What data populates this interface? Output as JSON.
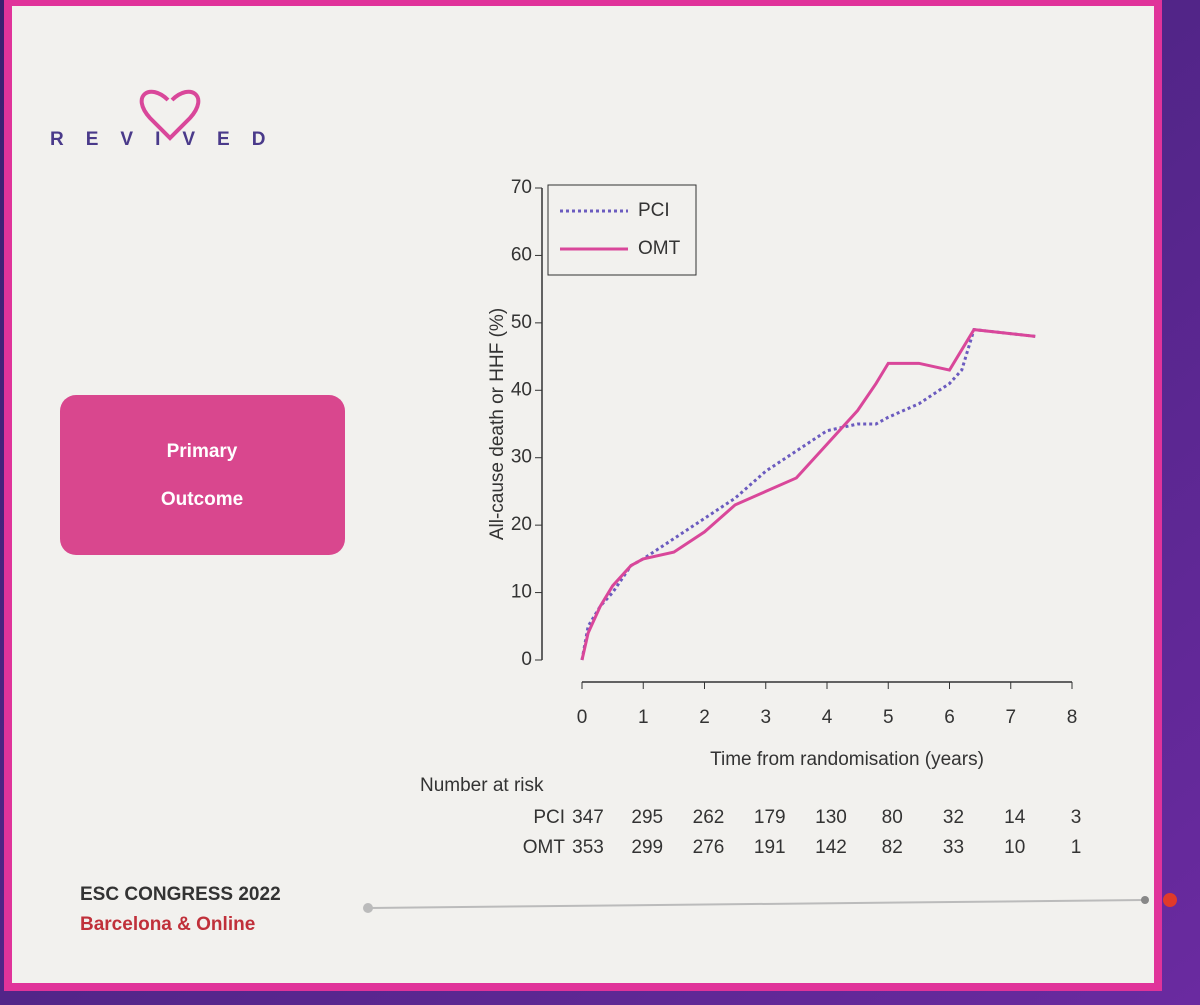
{
  "slide": {
    "logo": "REVIVED",
    "badge": [
      "Primary",
      "Outcome"
    ],
    "footer": {
      "title": "ESC CONGRESS 2022",
      "subtitle": "Barcelona & Online"
    }
  },
  "chart_data": {
    "type": "line",
    "y_label": "All-cause death or HHF (%)",
    "x_label": "Time from randomisation (years)",
    "x": [
      0,
      0.1,
      0.3,
      0.5,
      0.8,
      1,
      1.5,
      2,
      2.5,
      3,
      3.5,
      4,
      4.5,
      4.8,
      5,
      5.5,
      6,
      6.2,
      6.4,
      7.4
    ],
    "series": [
      {
        "name": "PCI",
        "color": "#6b5bbf",
        "style": "dotted",
        "values": [
          0,
          5,
          8,
          10,
          14,
          15,
          18,
          21,
          24,
          28,
          31,
          34,
          35,
          35,
          36,
          38,
          41,
          43,
          49,
          48
        ]
      },
      {
        "name": "OMT",
        "color": "#d9479a",
        "style": "solid",
        "values": [
          0,
          4,
          8,
          11,
          14,
          15,
          16,
          19,
          23,
          25,
          27,
          32,
          37,
          41,
          44,
          44,
          43,
          46,
          49,
          48
        ]
      }
    ],
    "xlim": [
      0,
      8
    ],
    "xticks": [
      0,
      1,
      2,
      3,
      4,
      5,
      6,
      7,
      8
    ],
    "ylim": [
      0,
      70
    ],
    "yticks": [
      0,
      10,
      20,
      30,
      40,
      50,
      60,
      70
    ],
    "legend": "upper left",
    "number_at_risk": {
      "title": "Number at risk",
      "rows": [
        [
          347,
          295,
          262,
          179,
          130,
          80,
          32,
          14,
          3
        ],
        [
          353,
          299,
          276,
          191,
          142,
          82,
          33,
          10,
          1
        ]
      ]
    }
  }
}
